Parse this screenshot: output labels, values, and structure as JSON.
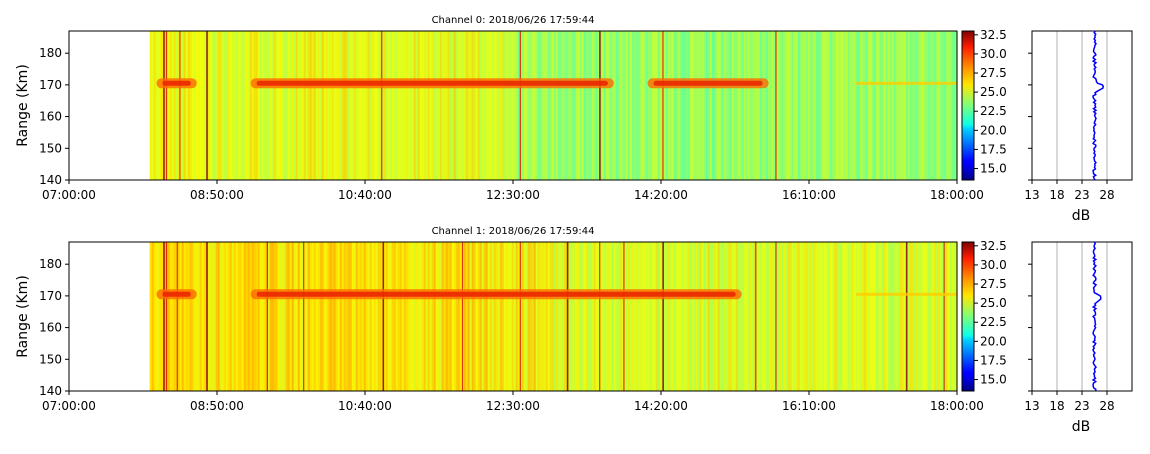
{
  "chart_data": [
    {
      "type": "heatmap",
      "title": "Channel 0: 2018/06/26 17:59:44",
      "xlabel": "",
      "ylabel": "Range (Km)",
      "x_ticks": [
        "07:00:00",
        "08:50:00",
        "10:40:00",
        "12:30:00",
        "14:20:00",
        "16:10:00",
        "18:00:00"
      ],
      "xlim": [
        "07:00:00",
        "18:00:00"
      ],
      "y_ticks": [
        140,
        150,
        160,
        170,
        180
      ],
      "ylim": [
        140,
        187
      ],
      "data_start": "08:00:00",
      "colorbar": {
        "colormap": "jet",
        "range": [
          13.5,
          33
        ],
        "ticks": [
          "15.0",
          "17.5",
          "20.0",
          "22.5",
          "25.0",
          "27.5",
          "30.0",
          "32.5"
        ]
      },
      "echo_layer": {
        "range_km": 170.5,
        "segments": [
          [
            "08:05",
            "08:35"
          ],
          [
            "09:15",
            "13:45"
          ],
          [
            "14:10",
            "15:40"
          ]
        ]
      },
      "profile": {
        "xlabel": "dB",
        "x_ticks": [
          13,
          18,
          23,
          28
        ],
        "xlim": [
          13,
          33
        ],
        "baseline_db": 25.5,
        "peak": {
          "range_km": 169.5,
          "db": 27.5
        },
        "color": "#0000ff"
      }
    },
    {
      "type": "heatmap",
      "title": "Channel 1: 2018/06/26 17:59:44",
      "xlabel": "",
      "ylabel": "Range (Km)",
      "x_ticks": [
        "07:00:00",
        "08:50:00",
        "10:40:00",
        "12:30:00",
        "14:20:00",
        "16:10:00",
        "18:00:00"
      ],
      "xlim": [
        "07:00:00",
        "18:00:00"
      ],
      "y_ticks": [
        140,
        150,
        160,
        170,
        180
      ],
      "ylim": [
        140,
        187
      ],
      "data_start": "08:00:00",
      "colorbar": {
        "colormap": "jet",
        "range": [
          13.5,
          33
        ],
        "ticks": [
          "15.0",
          "17.5",
          "20.0",
          "22.5",
          "25.0",
          "27.5",
          "30.0",
          "32.5"
        ]
      },
      "echo_layer": {
        "range_km": 170.5,
        "segments": [
          [
            "08:05",
            "08:35"
          ],
          [
            "09:15",
            "15:20"
          ]
        ]
      },
      "profile": {
        "xlabel": "dB",
        "x_ticks": [
          13,
          18,
          23,
          28
        ],
        "xlim": [
          13,
          33
        ],
        "baseline_db": 25.5,
        "peak": {
          "range_km": 169.5,
          "db": 27
        },
        "color": "#0000ff"
      }
    }
  ]
}
